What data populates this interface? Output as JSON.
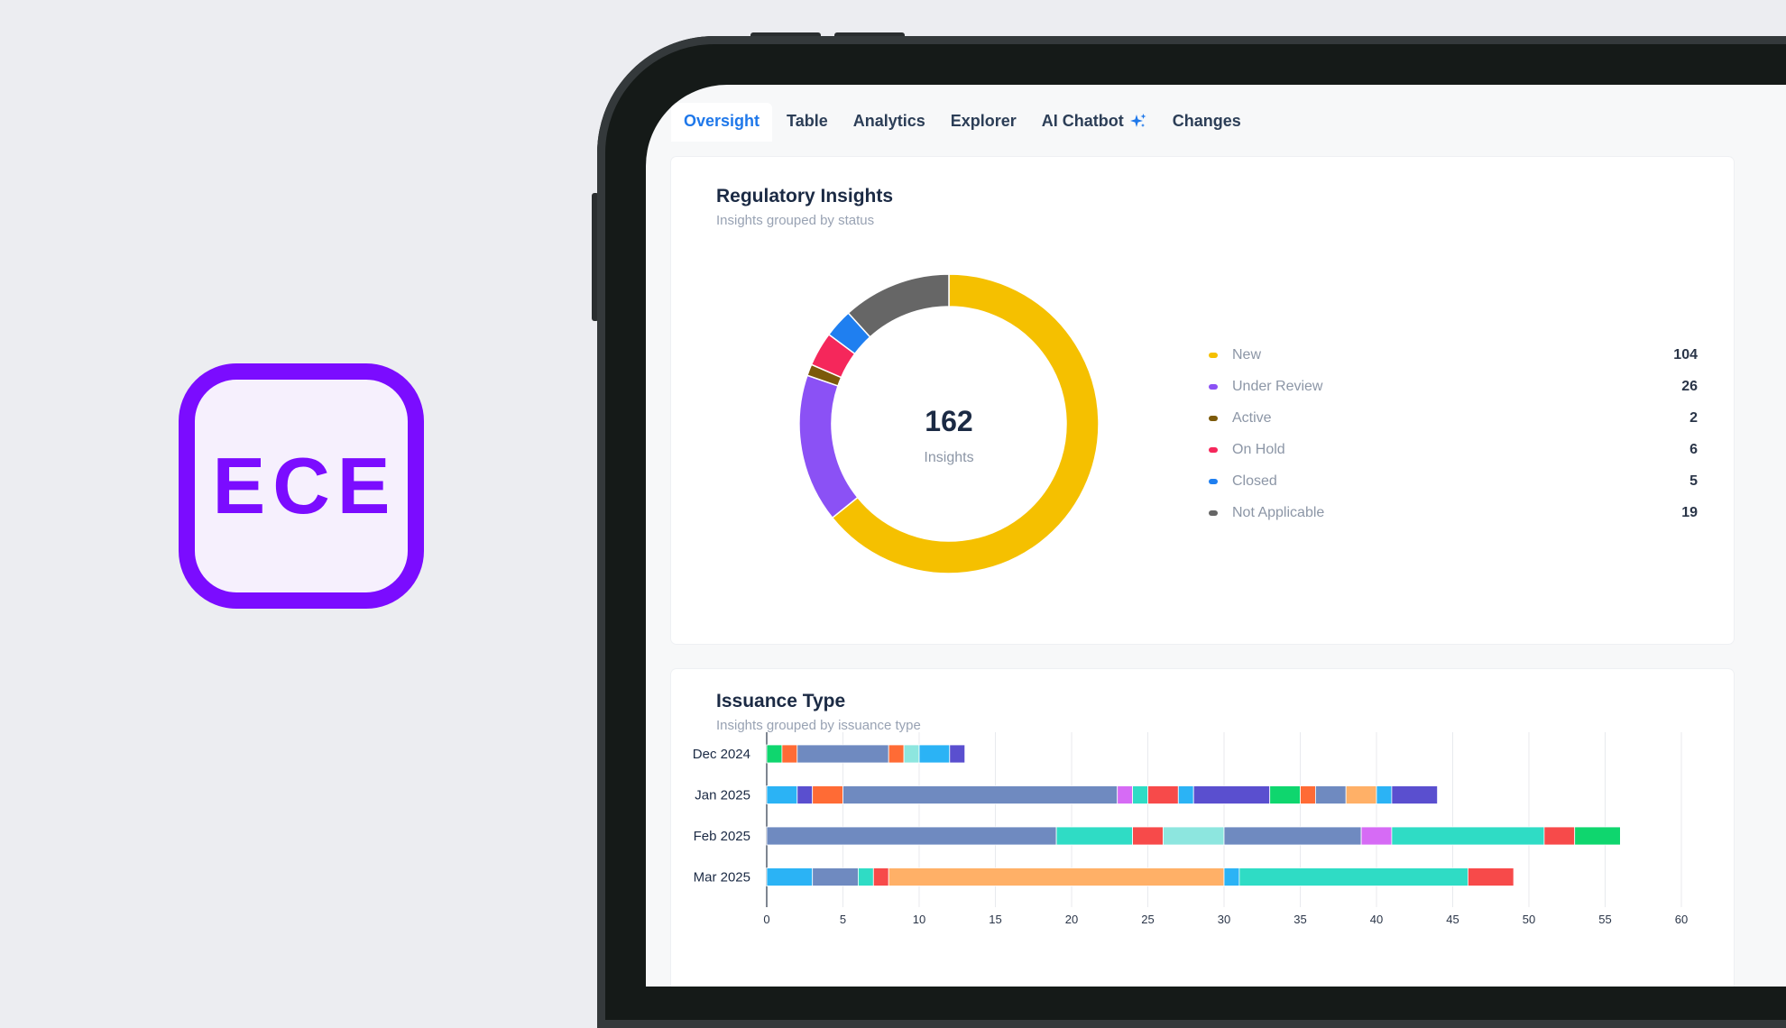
{
  "logo": {
    "text": "ECE",
    "color": "#7b0cff"
  },
  "tabs": [
    {
      "label": "Oversight",
      "active": true
    },
    {
      "label": "Table",
      "active": false
    },
    {
      "label": "Analytics",
      "active": false
    },
    {
      "label": "Explorer",
      "active": false
    },
    {
      "label": "AI Chatbot",
      "active": false,
      "icon": "sparkle-icon"
    },
    {
      "label": "Changes",
      "active": false
    }
  ],
  "insights_card": {
    "title": "Regulatory Insights",
    "subtitle": "Insights grouped by status",
    "center_value": "162",
    "center_label": "Insights"
  },
  "issuance_card": {
    "title": "Issuance Type",
    "subtitle": "Insights grouped by issuance type"
  },
  "chart_data": [
    {
      "type": "pie",
      "title": "Regulatory Insights",
      "total": 162,
      "labels": [
        "New",
        "Under Review",
        "Active",
        "On Hold",
        "Closed",
        "Not Applicable"
      ],
      "values": [
        104,
        26,
        2,
        6,
        5,
        19
      ],
      "colors": [
        "#f5c000",
        "#8b51f5",
        "#7c5a0a",
        "#f5275b",
        "#1f7ff0",
        "#666666"
      ]
    },
    {
      "type": "bar",
      "orientation": "horizontal",
      "stacked": true,
      "title": "Issuance Type",
      "categories": [
        "Dec 2024",
        "Jan 2025",
        "Feb 2025",
        "Mar 2025"
      ],
      "xlim": [
        0,
        60
      ],
      "xticks": [
        0,
        5,
        10,
        15,
        20,
        25,
        30,
        35,
        40,
        45,
        50,
        55,
        60
      ],
      "segments": [
        [
          [
            1,
            "#0fd66e"
          ],
          [
            1,
            "#ff6b35"
          ],
          [
            6,
            "#6f8ac0"
          ],
          [
            1,
            "#ff6b35"
          ],
          [
            1,
            "#8de6df"
          ],
          [
            2,
            "#2bb3f5"
          ],
          [
            1,
            "#5a4fcf"
          ]
        ],
        [
          [
            2,
            "#2bb3f5"
          ],
          [
            1,
            "#5a4fcf"
          ],
          [
            2,
            "#ff6b35"
          ],
          [
            18,
            "#6f8ac0"
          ],
          [
            1,
            "#d66bf5"
          ],
          [
            1,
            "#2fdcc5"
          ],
          [
            2,
            "#f74a4a"
          ],
          [
            1,
            "#2bb3f5"
          ],
          [
            5,
            "#5a4fcf"
          ],
          [
            2,
            "#0fd66e"
          ],
          [
            1,
            "#ff6b35"
          ],
          [
            2,
            "#6f8ac0"
          ],
          [
            2,
            "#ffb067"
          ],
          [
            1,
            "#2bb3f5"
          ],
          [
            3,
            "#5a4fcf"
          ]
        ],
        [
          [
            19,
            "#6f8ac0"
          ],
          [
            5,
            "#2fdcc5"
          ],
          [
            2,
            "#f74a4a"
          ],
          [
            4,
            "#8de6df"
          ],
          [
            9,
            "#6f8ac0"
          ],
          [
            2,
            "#d66bf5"
          ],
          [
            10,
            "#2fdcc5"
          ],
          [
            2,
            "#f74a4a"
          ],
          [
            3,
            "#0fd66e"
          ]
        ],
        [
          [
            3,
            "#2bb3f5"
          ],
          [
            3,
            "#6f8ac0"
          ],
          [
            1,
            "#2fdcc5"
          ],
          [
            1,
            "#f74a4a"
          ],
          [
            22,
            "#ffb067"
          ],
          [
            1,
            "#2bb3f5"
          ],
          [
            15,
            "#2fdcc5"
          ],
          [
            3,
            "#f74a4a"
          ]
        ]
      ]
    }
  ]
}
